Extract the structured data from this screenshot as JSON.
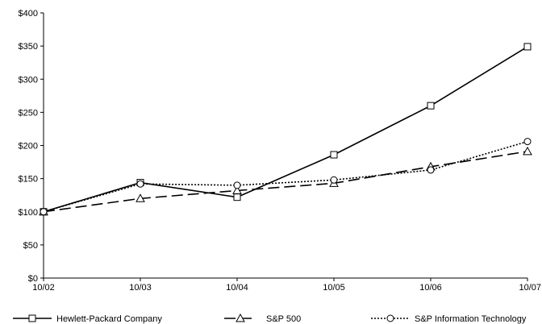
{
  "chart_data": {
    "type": "line",
    "title": "",
    "xlabel": "",
    "ylabel": "",
    "categories": [
      "10/02",
      "10/03",
      "10/04",
      "10/05",
      "10/06",
      "10/07"
    ],
    "y_ticks": [
      "$0",
      "$50",
      "$100",
      "$150",
      "$200",
      "$250",
      "$300",
      "$350",
      "$400"
    ],
    "ylim": [
      0,
      400
    ],
    "grid": false,
    "legend_position": "bottom",
    "series": [
      {
        "name": "Hewlett-Packard Company",
        "values": [
          100,
          144,
          122,
          186,
          260,
          349
        ],
        "marker": "square",
        "line_style": "solid",
        "color": "#000000"
      },
      {
        "name": "S&P 500",
        "values": [
          100,
          120,
          132,
          143,
          168,
          191
        ],
        "marker": "triangle",
        "line_style": "dashed",
        "color": "#000000"
      },
      {
        "name": "S&P Information Technology",
        "values": [
          100,
          142,
          140,
          148,
          163,
          206
        ],
        "marker": "circle",
        "line_style": "dotted",
        "color": "#000000"
      }
    ]
  }
}
